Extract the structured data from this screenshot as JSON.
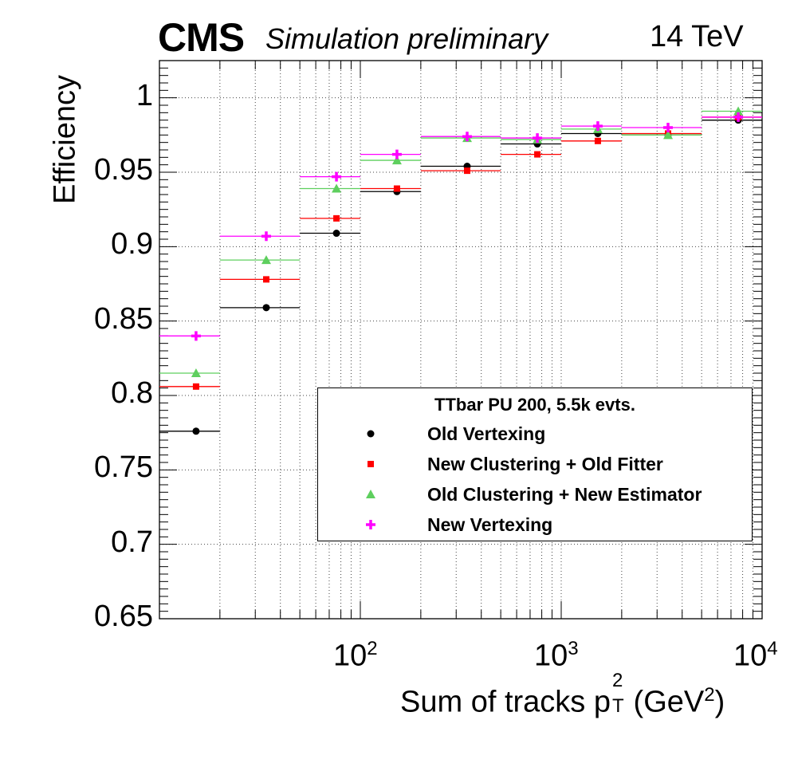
{
  "header": {
    "cms": "CMS",
    "simulation": "Simulation preliminary",
    "energy": "14 TeV"
  },
  "chart_data": {
    "type": "scatter",
    "title": "",
    "xlabel": "Sum of tracks p_T^2 (GeV^2)",
    "xlabel_parts": {
      "pre": "Sum of tracks p",
      "sup": "2",
      "sub": "T",
      "post": " (GeV",
      "sup2": "2",
      "end": ")"
    },
    "ylabel": "Efficiency",
    "xscale": "log",
    "xlim": [
      10,
      10000
    ],
    "ylim": [
      0.65,
      1.025
    ],
    "grid": true,
    "yticks": [
      0.65,
      0.7,
      0.75,
      0.8,
      0.85,
      0.9,
      0.95,
      1.0
    ],
    "ytick_labels": [
      "0.65",
      "0.7",
      "0.75",
      "0.8",
      "0.85",
      "0.9",
      "0.95",
      "1"
    ],
    "xticks": [
      100,
      1000,
      10000
    ],
    "xtick_labels": [
      {
        "base": "10",
        "exp": "2"
      },
      {
        "base": "10",
        "exp": "3"
      },
      {
        "base": "10",
        "exp": "4"
      }
    ],
    "bins": [
      [
        10,
        20
      ],
      [
        20,
        50
      ],
      [
        50,
        100
      ],
      [
        100,
        200
      ],
      [
        200,
        500
      ],
      [
        500,
        1000
      ],
      [
        1000,
        2000
      ],
      [
        2000,
        5000
      ],
      [
        5000,
        10000
      ]
    ],
    "legend_placement": "lower-right",
    "legend_title": "TTbar PU 200, 5.5k evts.",
    "series": [
      {
        "name": "Old Vertexing",
        "color": "#000000",
        "marker": "circle",
        "values": [
          0.776,
          0.859,
          0.909,
          0.937,
          0.954,
          0.969,
          0.976,
          0.975,
          0.985
        ]
      },
      {
        "name": "New Clustering + Old Fitter",
        "color": "#ff0000",
        "marker": "square",
        "values": [
          0.806,
          0.878,
          0.919,
          0.939,
          0.951,
          0.962,
          0.971,
          0.976,
          0.987
        ]
      },
      {
        "name": "Old Clustering + New Estimator",
        "color": "#5ecf5e",
        "marker": "triangle",
        "values": [
          0.815,
          0.891,
          0.939,
          0.958,
          0.973,
          0.972,
          0.979,
          0.975,
          0.991
        ]
      },
      {
        "name": "New Vertexing",
        "color": "#ff00ff",
        "marker": "cross",
        "values": [
          0.84,
          0.907,
          0.947,
          0.962,
          0.974,
          0.973,
          0.981,
          0.98,
          0.987
        ]
      }
    ]
  }
}
